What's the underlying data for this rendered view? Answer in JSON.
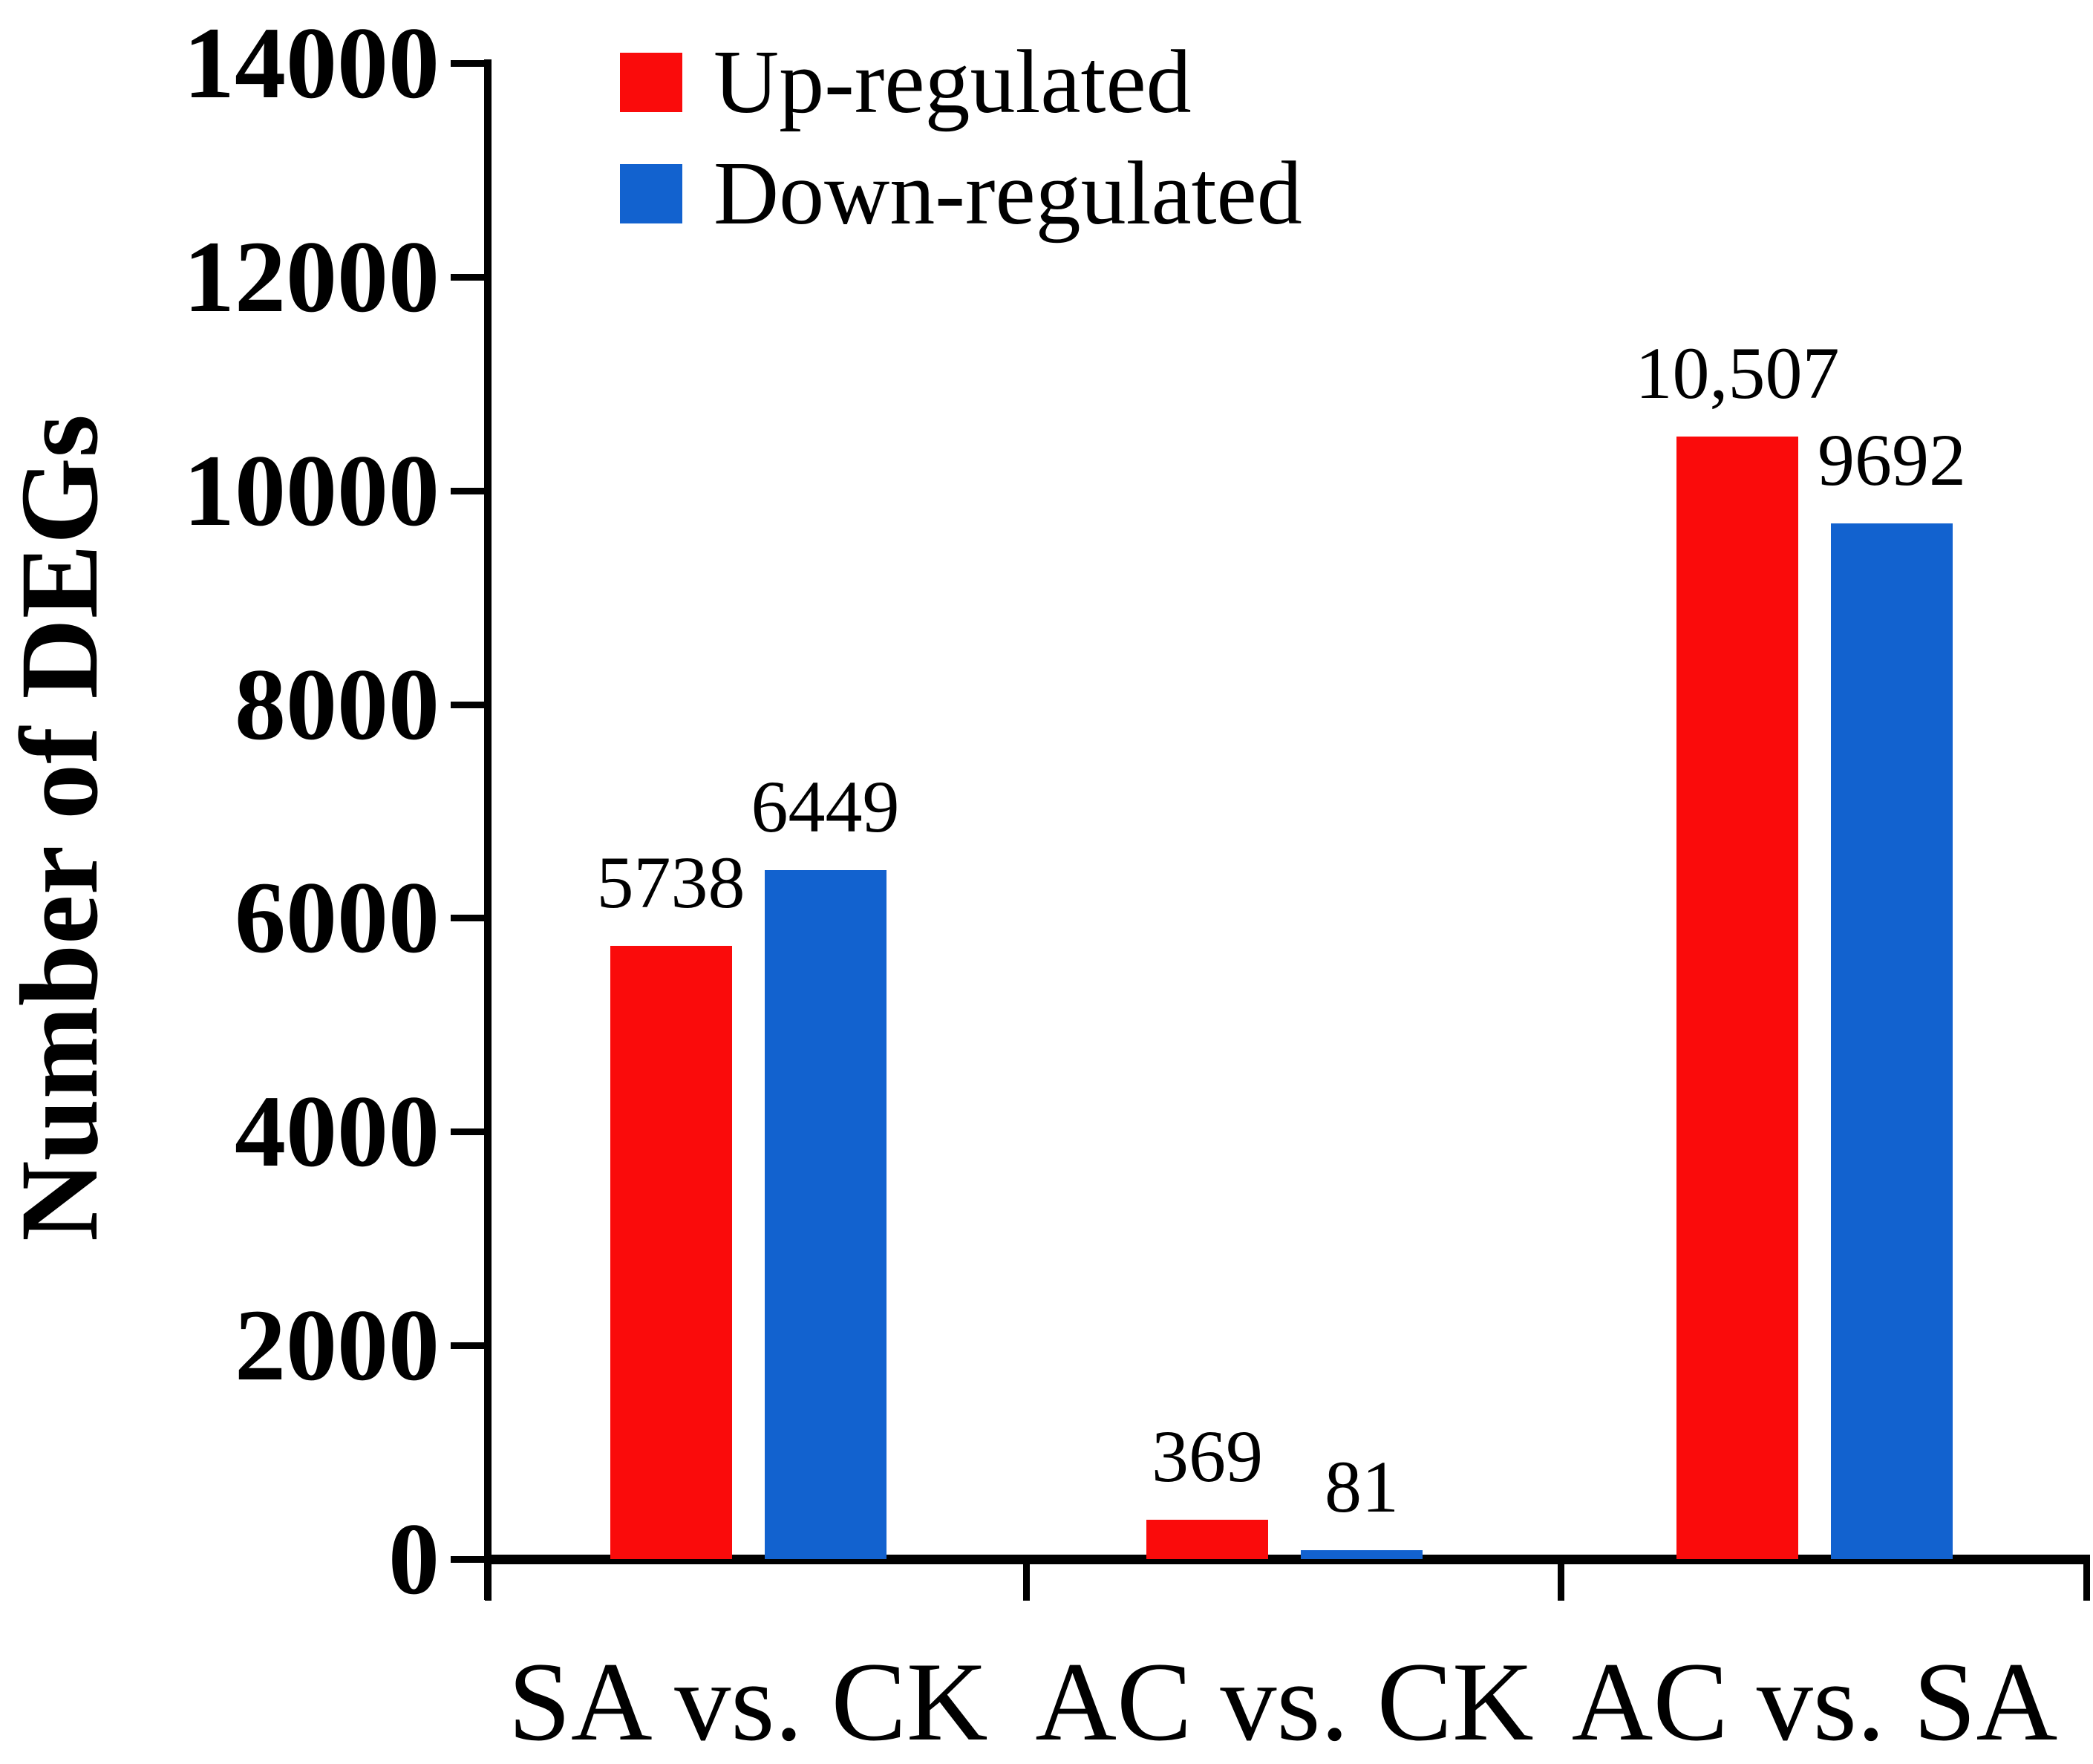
{
  "chart_data": {
    "type": "bar",
    "title": "",
    "ylabel": "Number of DEGs",
    "xlabel": "",
    "categories": [
      "SA vs. CK",
      "AC vs. CK",
      "AC vs. SA"
    ],
    "series": [
      {
        "name": "Up-regulated",
        "color": "#fa0b0b",
        "values": [
          5738,
          369,
          10507
        ],
        "value_labels": [
          "5738",
          "369",
          "10,507"
        ]
      },
      {
        "name": "Down-regulated",
        "color": "#1262cf",
        "values": [
          6449,
          81,
          9692
        ],
        "value_labels": [
          "6449",
          "81",
          "9692"
        ]
      }
    ],
    "ylim": [
      0,
      14000
    ],
    "yticks": [
      0,
      2000,
      4000,
      6000,
      8000,
      10000,
      12000,
      14000
    ],
    "ytick_labels": [
      "0",
      "2000",
      "4000",
      "6000",
      "8000",
      "10000",
      "12000",
      "14000"
    ],
    "legend_position": "top-left",
    "grid": false,
    "bar_value_labels_shown": true,
    "axis_color": "#000000",
    "text_color": "#000000"
  }
}
